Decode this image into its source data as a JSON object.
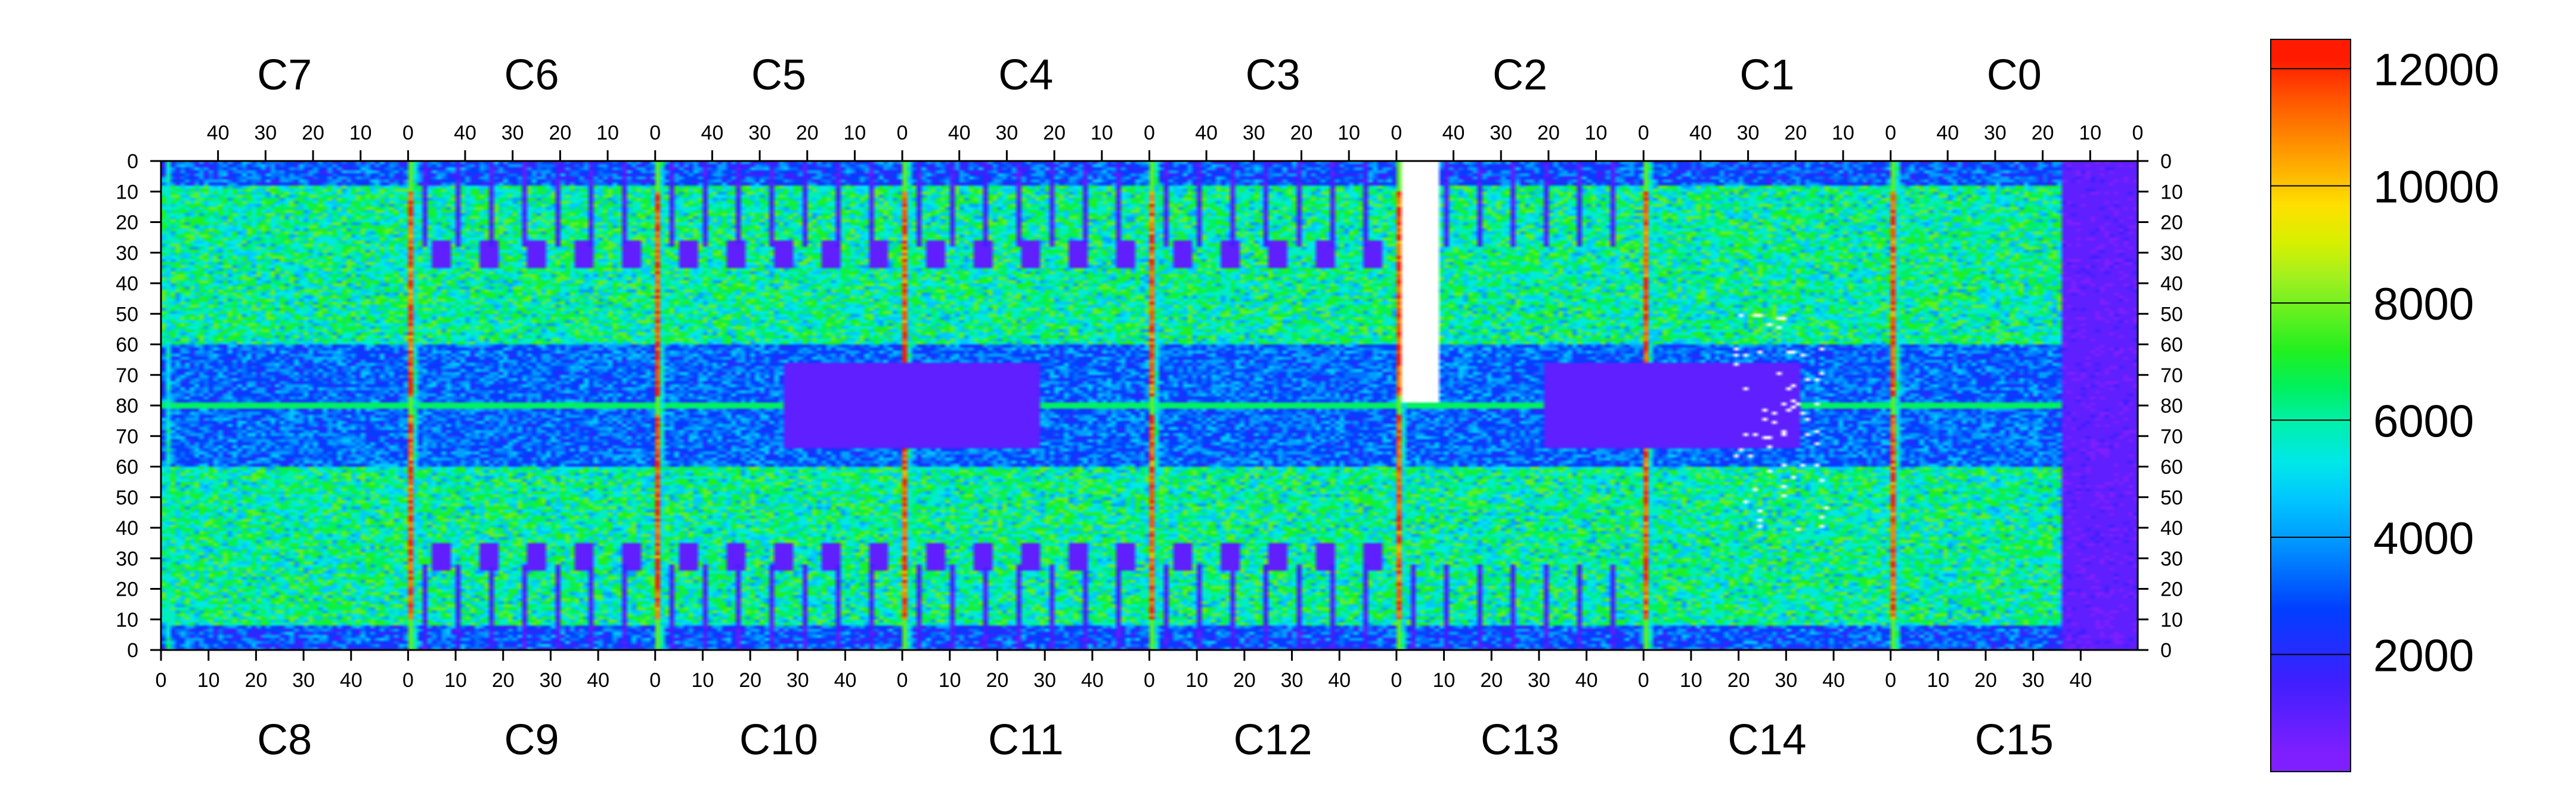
{
  "chart_data": {
    "type": "heatmap",
    "title": "",
    "xlabel": "",
    "ylabel": "",
    "grid": false,
    "legend_placement": "right",
    "top_chips": [
      "C7",
      "C6",
      "C5",
      "C4",
      "C3",
      "C2",
      "C1",
      "C0"
    ],
    "bottom_chips": [
      "C8",
      "C9",
      "C10",
      "C11",
      "C12",
      "C13",
      "C14",
      "C15"
    ],
    "top_axis_tick_labels": [
      "40",
      "30",
      "20",
      "10",
      "0"
    ],
    "bottom_axis_tick_labels": [
      "0",
      "10",
      "20",
      "30",
      "40"
    ],
    "left_axis_tick_labels": [
      "0",
      "10",
      "20",
      "30",
      "40",
      "50",
      "60",
      "70",
      "80",
      "70",
      "60",
      "50",
      "40",
      "30",
      "20",
      "10",
      "0"
    ],
    "right_axis_tick_labels": [
      "0",
      "10",
      "20",
      "30",
      "40",
      "50",
      "60",
      "70",
      "80",
      "70",
      "60",
      "50",
      "40",
      "30",
      "20",
      "10",
      "0"
    ],
    "x_range_per_chip": [
      0,
      52
    ],
    "y_range_per_half": [
      0,
      80
    ],
    "grid_size": {
      "columns": 416,
      "rows": 160
    },
    "z_range": [
      0,
      12500
    ],
    "colorbar_tick_labels": [
      "12000",
      "10000",
      "8000",
      "6000",
      "4000",
      "2000"
    ],
    "colorbar_tick_values": [
      12000,
      10000,
      8000,
      6000,
      4000,
      2000
    ],
    "palette": [
      "#7f1fff",
      "#5f1fff",
      "#3f1fff",
      "#1f2fff",
      "#0040ff",
      "#0070ff",
      "#00a0ff",
      "#00c8ff",
      "#00e8e8",
      "#00f0b0",
      "#00f060",
      "#20f020",
      "#60f020",
      "#a0f020",
      "#d8f000",
      "#ffe000",
      "#ffb000",
      "#ff8000",
      "#ff5000",
      "#ff1a00"
    ],
    "features": {
      "hot_columns_x": [
        0,
        52,
        104,
        156,
        208,
        260,
        312,
        364
      ],
      "empty_block": {
        "x": [
          261,
          268
        ],
        "y_top_rows": [
          0,
          78
        ]
      },
      "low_region_x": [
        300,
        333
      ],
      "white_dots_region": {
        "x": [
          330,
          350
        ],
        "y_top_rows": [
          50,
          120
        ]
      }
    }
  }
}
